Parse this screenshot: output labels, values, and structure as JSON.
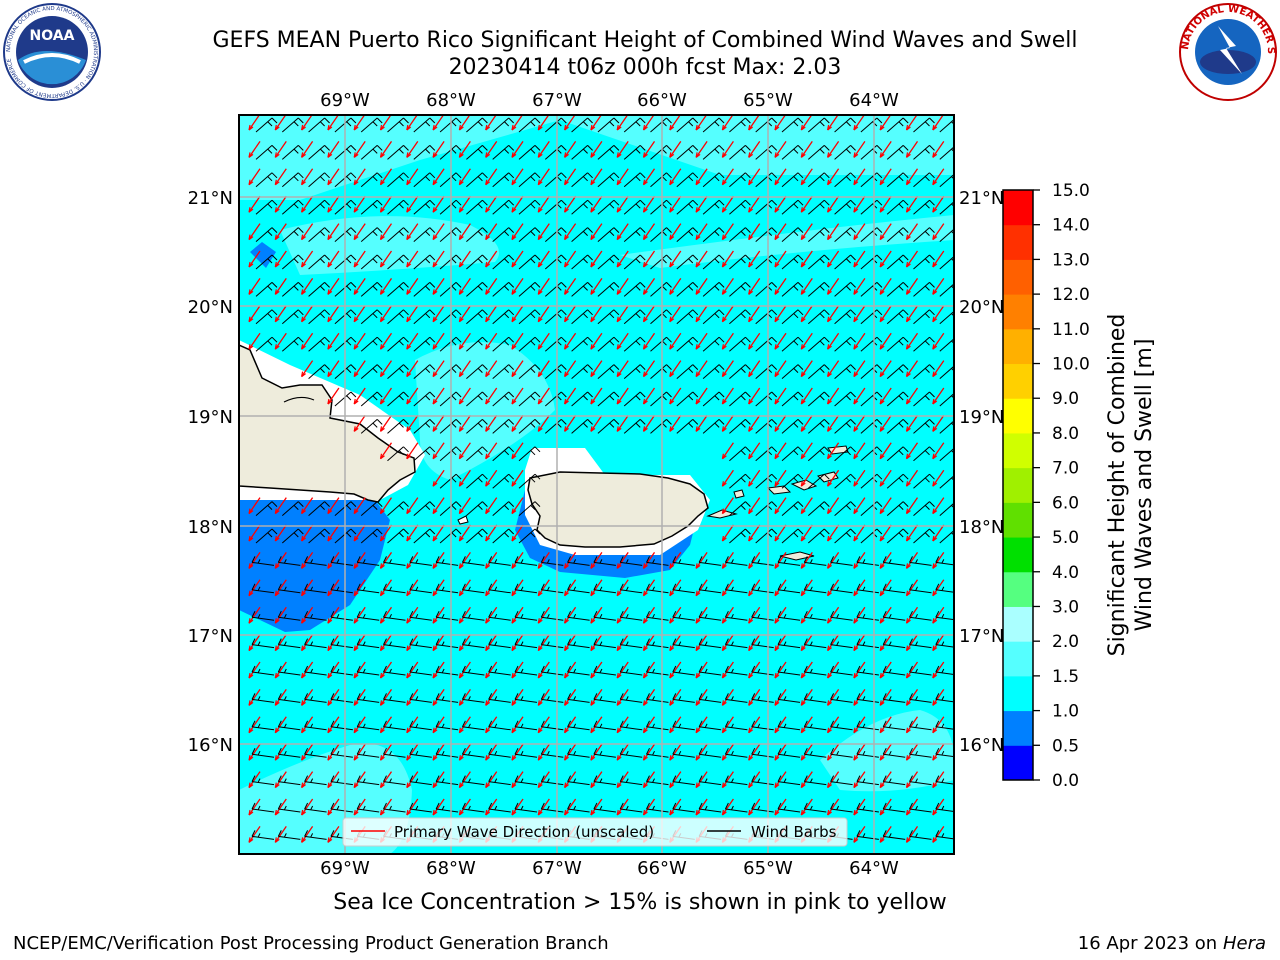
{
  "header": {
    "title_line1": "GEFS MEAN Puerto Rico Significant Height of Combined Wind Waves and Swell",
    "title_line2": "20230414 t06z 000h fcst   Max: 2.03"
  },
  "logos": {
    "noaa": "NOAA",
    "noaa_ring": "NATIONAL OCEANIC AND ATMOSPHERIC ADMINISTRATION · U.S. DEPARTMENT OF COMMERCE",
    "nws_ring": "NATIONAL WEATHER SERVICE"
  },
  "map": {
    "lon_labels": [
      "69°W",
      "68°W",
      "67°W",
      "66°W",
      "65°W",
      "64°W"
    ],
    "lat_labels": [
      "21°N",
      "20°N",
      "19°N",
      "18°N",
      "17°N",
      "16°N"
    ],
    "legend": {
      "primary_wave": "Primary Wave Direction (unscaled)",
      "wind_barbs": "Wind Barbs"
    },
    "colors": {
      "ocean": "#00ffff",
      "light_cyan": "#55ffff",
      "blue": "#0080ff",
      "land": "#eeecdc",
      "arrow": "#ff0000"
    }
  },
  "colorbar": {
    "label_line1": "Significant Height of Combined",
    "label_line2": "Wind Waves and Swell [m]",
    "ticks": [
      "0.0",
      "0.5",
      "1.0",
      "1.5",
      "2.0",
      "3.0",
      "4.0",
      "5.0",
      "6.0",
      "7.0",
      "8.0",
      "9.0",
      "10.0",
      "11.0",
      "12.0",
      "13.0",
      "14.0",
      "15.0"
    ],
    "colors": [
      "#0000ff",
      "#0080ff",
      "#00ffff",
      "#55ffff",
      "#aaffff",
      "#55ff80",
      "#00e000",
      "#60e000",
      "#a0f000",
      "#d0ff00",
      "#ffff00",
      "#ffd000",
      "#ffb000",
      "#ff8000",
      "#ff6000",
      "#ff3000",
      "#ff0000"
    ]
  },
  "caption": "Sea Ice Concentration > 15% is shown in pink to yellow",
  "footer": {
    "left": "NCEP/EMC/Verification Post Processing Product Generation Branch",
    "date": "16 Apr 2023 on ",
    "host": "Hera"
  }
}
